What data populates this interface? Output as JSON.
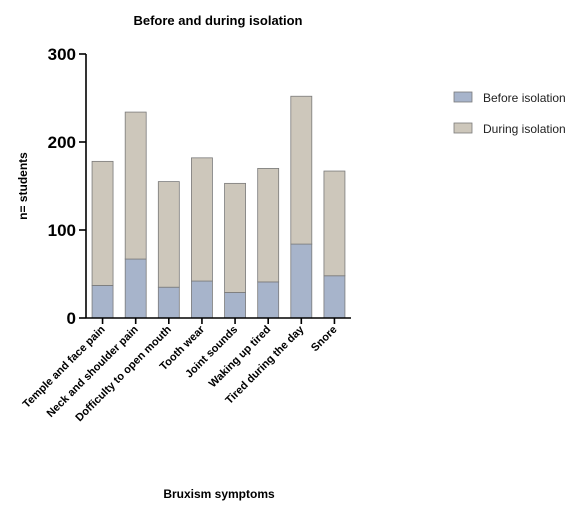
{
  "chart_data": {
    "type": "bar",
    "stacked": true,
    "title": "Before and during isolation",
    "xlabel": "Bruxism symptoms",
    "ylabel": "n= students",
    "ylim": [
      0,
      300
    ],
    "yticks": [
      0,
      100,
      200,
      300
    ],
    "grid": false,
    "legend_position": "top-right",
    "categories": [
      "Temple and face pain",
      "Neck and shoulder pain",
      "Dofficulty to open mouth",
      "Tooth wear",
      "Joint sounds",
      "Waking up tired",
      "Tired during the day",
      "Snore"
    ],
    "series": [
      {
        "name": "Before isolation",
        "color": "#a7b4cb",
        "values": [
          37,
          67,
          35,
          42,
          29,
          41,
          84,
          48
        ]
      },
      {
        "name": "During isolation",
        "color": "#cdc7bb",
        "values": [
          141,
          167,
          120,
          140,
          124,
          129,
          168,
          119
        ]
      }
    ]
  }
}
